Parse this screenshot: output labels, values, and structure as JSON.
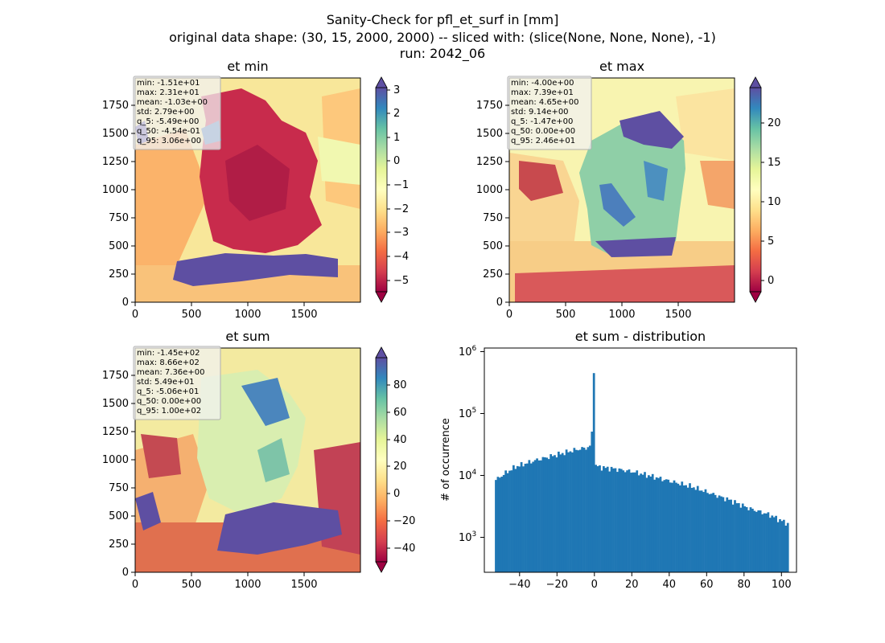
{
  "suptitle": {
    "line1": "Sanity-Check for pfl_et_surf in [mm]",
    "line2": "original data shape: (30, 15, 2000, 2000) -- sliced with: (slice(None, None, None), -1)",
    "line3": "run: 2042_06"
  },
  "chart_data": [
    {
      "type": "heatmap",
      "title": "et min",
      "xlim": [
        0,
        2000
      ],
      "ylim": [
        0,
        2000
      ],
      "xticks": [
        "0",
        "500",
        "1000",
        "1500"
      ],
      "yticks": [
        "0",
        "250",
        "500",
        "750",
        "1000",
        "1250",
        "1500",
        "1750"
      ],
      "colormap": "Spectral",
      "colorbar": {
        "range": [
          -5.49,
          3.06
        ],
        "ticks": [
          "3",
          "2",
          "1",
          "0",
          "−1",
          "−2",
          "−3",
          "−4",
          "−5"
        ],
        "extend": "both"
      },
      "stats": [
        "min: -1.51e+01",
        "max: 2.31e+01",
        "mean: -1.03e+00",
        "std: 2.79e+00",
        "q_5: -5.49e+00",
        "q_50: -4.54e-01",
        "q_95: 3.06e+00"
      ]
    },
    {
      "type": "heatmap",
      "title": "et max",
      "xlim": [
        0,
        2000
      ],
      "ylim": [
        0,
        2000
      ],
      "xticks": [
        "0",
        "500",
        "1000",
        "1500"
      ],
      "yticks": [
        "0",
        "250",
        "500",
        "750",
        "1000",
        "1250",
        "1500",
        "1750"
      ],
      "colormap": "Spectral",
      "colorbar": {
        "range": [
          -1.47,
          24.6
        ],
        "ticks": [
          "20",
          "15",
          "10",
          "5",
          "0"
        ],
        "extend": "both"
      },
      "stats": [
        "min: -4.00e+00",
        "max: 7.39e+01",
        "mean: 4.65e+00",
        "std: 9.14e+00",
        "q_5: -1.47e+00",
        "q_50: 0.00e+00",
        "q_95: 2.46e+01"
      ]
    },
    {
      "type": "heatmap",
      "title": "et sum",
      "xlim": [
        0,
        2000
      ],
      "ylim": [
        0,
        2000
      ],
      "xticks": [
        "0",
        "500",
        "1000",
        "1500"
      ],
      "yticks": [
        "0",
        "250",
        "500",
        "750",
        "1000",
        "1250",
        "1500",
        "1750"
      ],
      "colormap": "Spectral",
      "colorbar": {
        "range": [
          -50.6,
          100
        ],
        "ticks": [
          "80",
          "60",
          "40",
          "20",
          "0",
          "−20",
          "−40"
        ],
        "extend": "both"
      },
      "stats": [
        "min: -1.45e+02",
        "max: 8.66e+02",
        "mean: 7.36e+00",
        "std: 5.49e+01",
        "q_5: -5.06e+01",
        "q_50: 0.00e+00",
        "q_95: 1.00e+02"
      ]
    },
    {
      "type": "bar",
      "title": "et sum - distribution",
      "ylabel": "# of occurrence",
      "xlabel": "",
      "ylog": true,
      "xlim": [
        -56,
        104
      ],
      "ylim": [
        250,
        1400000
      ],
      "xticks": [
        "−40",
        "−20",
        "0",
        "20",
        "40",
        "60",
        "80",
        "100"
      ],
      "yticks": [
        "10^3",
        "10^4",
        "10^5",
        "10^6"
      ],
      "bin_range": [
        -50.6,
        100
      ],
      "bins": 150,
      "color": "#1f77b4",
      "envelope": {
        "x": [
          -50.6,
          -45,
          -40,
          -30,
          -20,
          -10,
          -2,
          -1,
          0,
          1,
          5,
          10,
          20,
          30,
          40,
          50,
          60,
          70,
          80,
          90,
          95,
          100
        ],
        "y": [
          8500,
          11500,
          14500,
          18500,
          22500,
          27500,
          31000,
          40000,
          800000,
          15000,
          14000,
          13500,
          12000,
          10000,
          8200,
          6800,
          5200,
          4000,
          2900,
          2300,
          1900,
          1600
        ]
      }
    }
  ],
  "colors": {
    "hist_bar": "#1f77b4",
    "axes": "#000000",
    "stats_box_edge": "#b0b0b0"
  }
}
